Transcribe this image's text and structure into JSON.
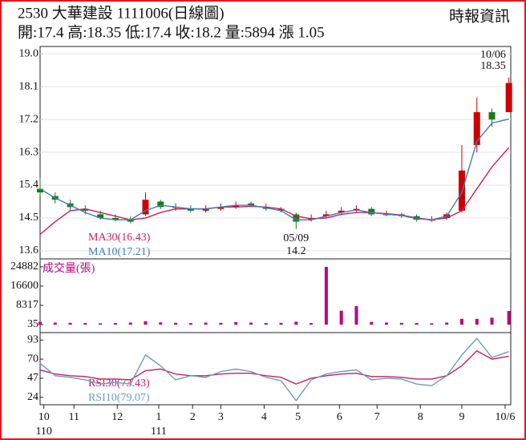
{
  "header": {
    "title": "2530  大華建設 1111006(日線圖)",
    "source": "時報資訊",
    "summary": "開:17.4 高:18.35 低:17.4 收:18.2 量:5894 漲 1.05"
  },
  "chart_data": [
    {
      "type": "candlestick",
      "x": [
        0,
        8,
        16,
        24,
        32,
        40,
        48,
        56,
        64,
        72,
        80,
        88,
        96,
        104,
        112,
        120,
        128,
        136,
        144,
        152,
        160,
        168,
        176,
        184,
        192,
        200,
        208,
        216,
        224,
        232,
        240,
        249
      ],
      "open": [
        15.3,
        15.1,
        14.9,
        14.75,
        14.6,
        14.5,
        14.45,
        14.6,
        14.95,
        14.8,
        14.75,
        14.7,
        14.75,
        14.8,
        14.9,
        14.8,
        14.75,
        14.6,
        14.45,
        14.55,
        14.65,
        14.7,
        14.75,
        14.6,
        14.6,
        14.55,
        14.45,
        14.5,
        14.7,
        16.5,
        17.4,
        17.4
      ],
      "high": [
        15.6,
        15.2,
        15.0,
        14.85,
        14.7,
        14.6,
        14.55,
        15.2,
        15.0,
        14.9,
        14.85,
        14.85,
        14.9,
        14.95,
        14.95,
        14.9,
        14.8,
        14.65,
        14.6,
        14.7,
        14.8,
        14.85,
        14.8,
        14.7,
        14.65,
        14.6,
        14.55,
        14.65,
        16.5,
        17.8,
        17.5,
        18.35
      ],
      "low": [
        15.1,
        14.9,
        14.7,
        14.6,
        14.45,
        14.4,
        14.35,
        14.55,
        14.75,
        14.7,
        14.65,
        14.65,
        14.7,
        14.75,
        14.8,
        14.7,
        14.65,
        14.2,
        14.4,
        14.5,
        14.6,
        14.65,
        14.55,
        14.55,
        14.5,
        14.4,
        14.4,
        14.45,
        14.65,
        16.3,
        17.0,
        17.4
      ],
      "close": [
        15.2,
        15.0,
        14.8,
        14.7,
        14.5,
        14.45,
        14.4,
        15.0,
        14.8,
        14.8,
        14.7,
        14.75,
        14.8,
        14.85,
        14.85,
        14.75,
        14.7,
        14.4,
        14.5,
        14.6,
        14.7,
        14.75,
        14.6,
        14.6,
        14.55,
        14.45,
        14.45,
        14.6,
        15.8,
        17.4,
        17.2,
        18.2
      ],
      "up_color": "#cc0000",
      "down_color": "#1a7a1a",
      "series": [
        {
          "name": "MA30(16.43)",
          "color": "#cc1f5a",
          "values": [
            14.05,
            14.4,
            14.7,
            14.75,
            14.65,
            14.55,
            14.45,
            14.5,
            14.65,
            14.75,
            14.75,
            14.75,
            14.8,
            14.8,
            14.82,
            14.8,
            14.75,
            14.55,
            14.48,
            14.5,
            14.6,
            14.65,
            14.65,
            14.62,
            14.58,
            14.5,
            14.45,
            14.5,
            14.7,
            15.3,
            15.9,
            16.43
          ]
        },
        {
          "name": "MA10(17.21)",
          "color": "#3d7fb8",
          "values": [
            15.3,
            15.05,
            14.85,
            14.65,
            14.5,
            14.45,
            14.45,
            14.7,
            14.85,
            14.8,
            14.75,
            14.75,
            14.8,
            14.85,
            14.85,
            14.78,
            14.7,
            14.45,
            14.45,
            14.55,
            14.65,
            14.72,
            14.65,
            14.6,
            14.57,
            14.48,
            14.45,
            14.55,
            15.2,
            16.6,
            17.1,
            17.21
          ]
        }
      ],
      "annotations": [
        {
          "x": 249,
          "date": "10/06",
          "value": 18.35
        },
        {
          "x": 136,
          "date": "05/09",
          "value": 14.2
        }
      ],
      "xlim": [
        0,
        250
      ],
      "ylim": [
        13.38,
        19.2
      ],
      "yticks": [
        {
          "value": 19,
          "label": "19.0"
        },
        18.1,
        17.2,
        16.3,
        15.4,
        14.5,
        13.6
      ],
      "grid": true
    },
    {
      "type": "bar",
      "title": "成交量(張)",
      "color": "#c0007a",
      "x": [
        0,
        8,
        16,
        24,
        32,
        40,
        48,
        56,
        64,
        72,
        80,
        88,
        96,
        104,
        112,
        120,
        128,
        136,
        144,
        152,
        160,
        168,
        176,
        184,
        192,
        200,
        208,
        216,
        224,
        232,
        240,
        249
      ],
      "values": [
        1200,
        900,
        800,
        700,
        600,
        700,
        900,
        1500,
        1000,
        800,
        700,
        900,
        800,
        1100,
        900,
        700,
        800,
        1300,
        700,
        24882,
        6000,
        8000,
        1200,
        900,
        800,
        700,
        600,
        900,
        2500,
        2500,
        3000,
        5894
      ],
      "xlim": [
        0,
        250
      ],
      "ylim": [
        -3400,
        28300
      ],
      "yticks": [
        24882,
        16600,
        8317,
        35
      ],
      "grid": false
    },
    {
      "type": "line",
      "x": [
        0,
        8,
        16,
        24,
        32,
        40,
        48,
        56,
        64,
        72,
        80,
        88,
        96,
        104,
        112,
        120,
        128,
        136,
        144,
        152,
        160,
        168,
        176,
        184,
        192,
        200,
        208,
        216,
        224,
        232,
        240,
        249
      ],
      "series": [
        {
          "name": "RSI30(73.43)",
          "color": "#cc1f5a",
          "values": [
            57,
            52,
            50,
            49,
            46,
            46,
            45,
            56,
            58,
            52,
            50,
            50,
            52,
            53,
            53,
            50,
            48,
            40,
            47,
            50,
            52,
            53,
            49,
            49,
            48,
            46,
            46,
            50,
            62,
            80,
            70,
            73.43
          ]
        },
        {
          "name": "RSI10(79.07)",
          "color": "#6b9ac4",
          "values": [
            65,
            50,
            48,
            45,
            40,
            42,
            40,
            75,
            62,
            45,
            50,
            48,
            55,
            58,
            55,
            48,
            44,
            20,
            45,
            52,
            55,
            57,
            45,
            47,
            46,
            40,
            38,
            50,
            75,
            95,
            72,
            79.07
          ]
        }
      ],
      "xlim": [
        0,
        250
      ],
      "ylim": [
        15,
        102
      ],
      "yticks": [
        93,
        70,
        47,
        24
      ],
      "xticks": [
        {
          "value": 2,
          "label": "10"
        },
        {
          "value": 18,
          "label": "11"
        },
        {
          "value": 41,
          "label": "12"
        },
        {
          "value": 63,
          "label": "1"
        },
        {
          "value": 81,
          "label": "2"
        },
        {
          "value": 96,
          "label": "3"
        },
        {
          "value": 119,
          "label": "4"
        },
        {
          "value": 137,
          "label": "5"
        },
        {
          "value": 159,
          "label": "6"
        },
        {
          "value": 179,
          "label": "7"
        },
        {
          "value": 202,
          "label": "8"
        },
        {
          "value": 224,
          "label": "9"
        },
        {
          "value": 247,
          "label": "10/6"
        }
      ],
      "year_labels": [
        {
          "value": 2,
          "label": "110"
        },
        {
          "value": 63,
          "label": "111"
        }
      ],
      "grid": false
    }
  ]
}
